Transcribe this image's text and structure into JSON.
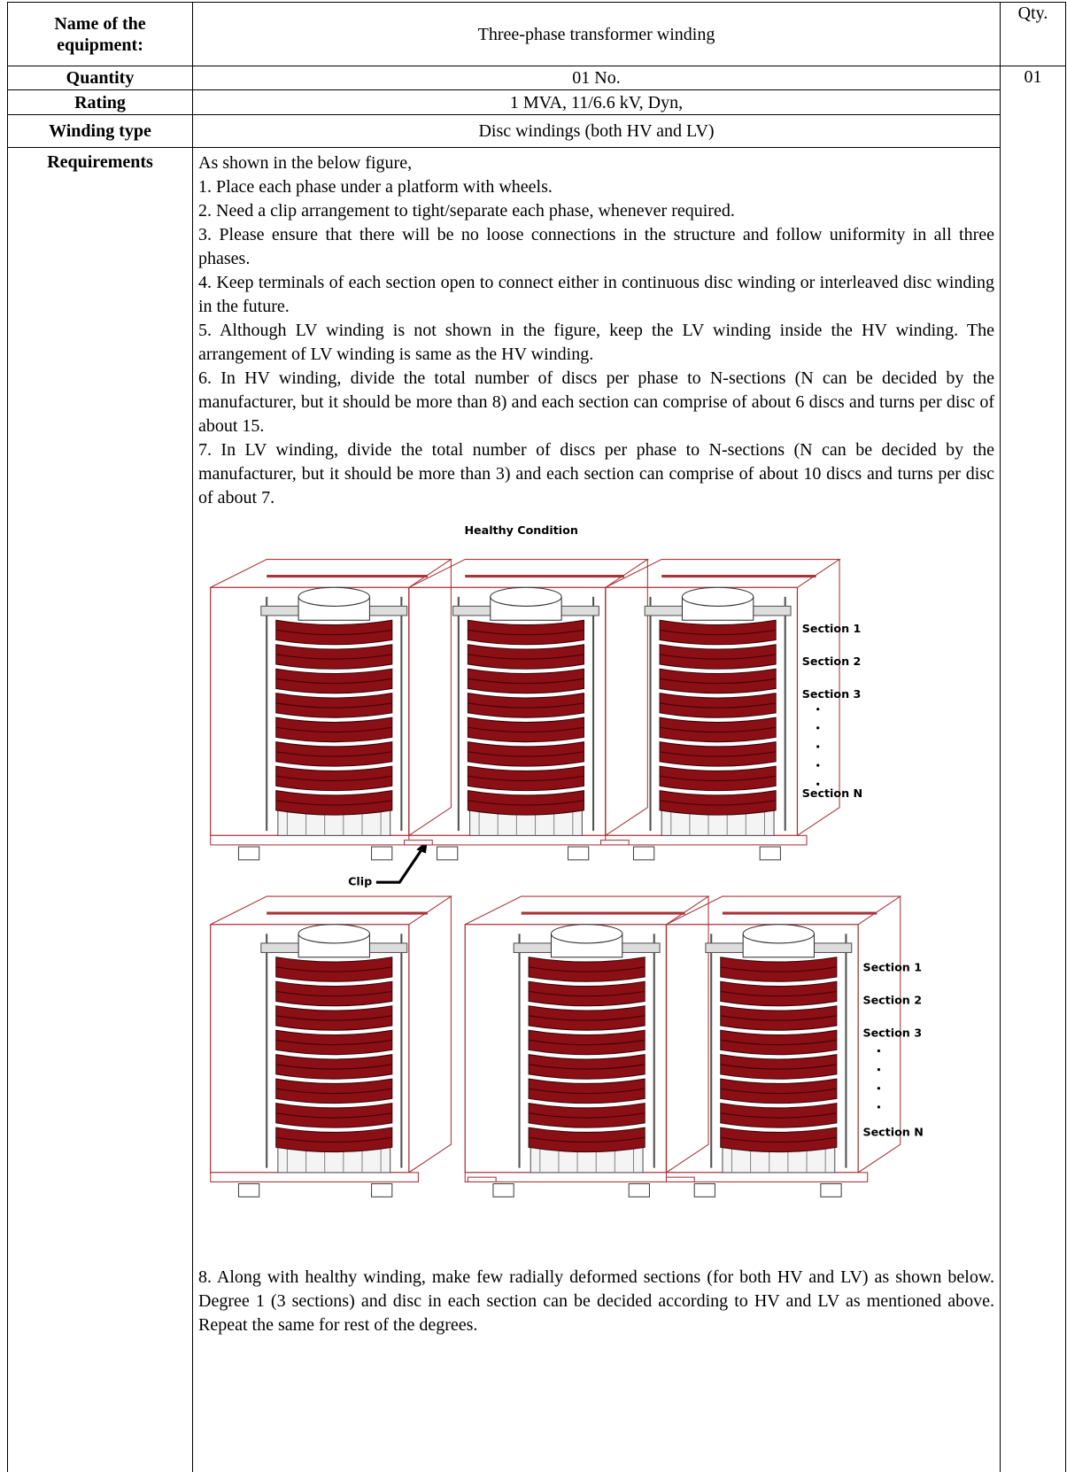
{
  "table": {
    "header": {
      "name_label": "Name of the equipment:",
      "name": "Three-phase transformer winding",
      "qty_label": "Qty."
    },
    "rows": [
      {
        "label": "Quantity",
        "value": "01 No.",
        "qty": "01"
      },
      {
        "label": "Rating",
        "value": "1 MVA, 11/6.6 kV, Dyn,"
      },
      {
        "label": "Winding type",
        "value": "Disc windings (both HV and LV)"
      }
    ],
    "requirements": {
      "label": "Requirements",
      "intro": "As shown in the below figure,",
      "items": [
        "1. Place each phase under a platform with wheels.",
        "2. Need a clip arrangement to tight/separate each phase, whenever required.",
        "3. Please ensure that there will be no loose connections in the structure and follow uniformity in all three phases.",
        "4. Keep terminals of each section open to connect either in continuous disc winding or interleaved disc winding in the future.",
        "5. Although LV winding is not shown in the figure, keep the LV winding inside the HV winding. The arrangement of LV winding is same as the HV winding.",
        "6. In HV winding, divide the total number of discs per phase to N-sections (N can be decided by the manufacturer, but it should be more than 8) and each section can comprise of about 6 discs and turns per disc of about 15.",
        "7. In LV winding, divide the total number of discs per phase to N-sections (N can be decided by the manufacturer, but it should be more than 3) and each section can comprise of about 10 discs and turns per disc of about 7."
      ],
      "after_figure": "8. Along with healthy winding, make few radially deformed sections (for both HV and LV) as shown below. Degree 1 (3 sections) and disc in each section can be decided according to HV and LV as mentioned above. Repeat the same for rest of the degrees."
    }
  },
  "figure": {
    "title": "Healthy Condition",
    "sections": [
      "Section 1",
      "Section 2",
      "Section 3",
      "Section N"
    ],
    "clip": "Clip"
  }
}
